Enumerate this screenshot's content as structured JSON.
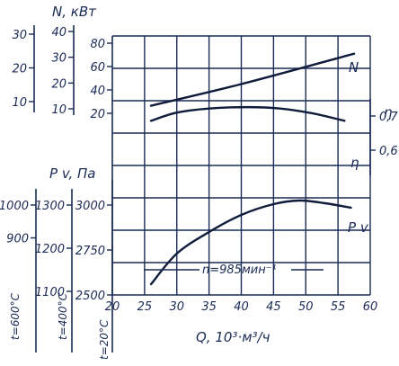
{
  "chart_data": {
    "type": "line",
    "colors": {
      "ink": "#1a2b55",
      "curve": "#101c3c",
      "background": "#ffffff"
    },
    "grid": true,
    "xlabel": "Q, 10³·м³/ч",
    "xticks": [
      "20",
      "25",
      "30",
      "35",
      "40",
      "45",
      "50",
      "55",
      "60"
    ],
    "xlim": [
      20,
      60
    ],
    "axes": {
      "N": {
        "label": "N, кВт",
        "main_ticks": [
          "20",
          "40",
          "60",
          "80"
        ],
        "main_range": [
          20,
          80
        ],
        "side1_ticks": [
          "10",
          "20",
          "30",
          "40"
        ],
        "side1_range": [
          10,
          40
        ],
        "side2_ticks": [
          "10",
          "20",
          "30"
        ],
        "side2_range": [
          10,
          30
        ]
      },
      "eta": {
        "label": "η",
        "ticks": [
          "0,7",
          "0,6"
        ],
        "range": [
          0.55,
          0.75
        ]
      },
      "Pv": {
        "label": "P v, Па",
        "main_ticks": [
          "2500",
          "2750",
          "3000"
        ],
        "main_range": [
          2500,
          3000
        ],
        "side1_ticks": [
          "1100",
          "1200",
          "1300"
        ],
        "side1_range": [
          1100,
          1300
        ],
        "side2_ticks": [
          "900",
          "1000"
        ],
        "side2_range": [
          833,
          1000
        ],
        "temps": [
          "t=600°C",
          "t=400°C",
          "t=20°C"
        ]
      }
    },
    "annotation": "n=985мин⁻¹",
    "series": [
      {
        "name": "N",
        "label": "N",
        "x": [
          26,
          40,
          57.5
        ],
        "y": [
          26.5,
          45,
          71
        ]
      },
      {
        "name": "η",
        "label": "η",
        "x": [
          26,
          30,
          35,
          41,
          46,
          51,
          56
        ],
        "y": [
          0.686,
          0.71,
          0.722,
          0.726,
          0.722,
          0.708,
          0.686
        ]
      },
      {
        "name": "Pv",
        "label": "P v",
        "x": [
          26,
          30,
          35,
          40,
          45,
          49,
          53,
          57
        ],
        "y": [
          2560,
          2730,
          2850,
          2945,
          3005,
          3025,
          3010,
          2985
        ]
      }
    ]
  }
}
